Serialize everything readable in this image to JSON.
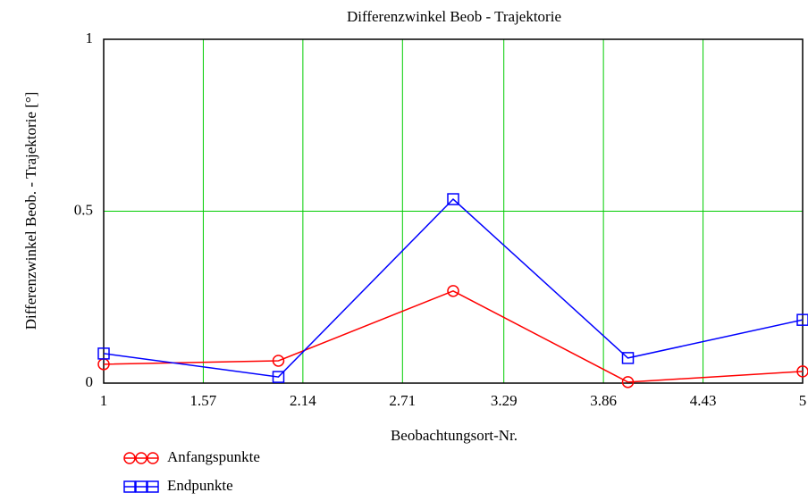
{
  "chart_data": {
    "type": "line",
    "title": "Differenzwinkel Beob - Trajektorie",
    "x_label": "Beobachtungsort-Nr.",
    "y_label": "Differenzwinkel Beob. - Trajektorie [°]",
    "x": [
      1,
      2,
      3,
      4,
      5
    ],
    "series": [
      {
        "name": "Anfangspunkte",
        "color": "#ff0000",
        "marker": "circle",
        "values": [
          0.055,
          0.065,
          0.268,
          0.003,
          0.034
        ]
      },
      {
        "name": "Endpunkte",
        "color": "#0000ff",
        "marker": "square",
        "values": [
          0.086,
          0.018,
          0.535,
          0.073,
          0.184
        ]
      }
    ],
    "xlim": [
      1,
      5
    ],
    "xticks": [
      1,
      1.57,
      2.14,
      2.71,
      3.29,
      3.86,
      4.43,
      5
    ],
    "ylim": [
      0,
      1
    ],
    "yticks": [
      0,
      0.5,
      1
    ],
    "grid": true,
    "grid_color": "#00cc00",
    "legend": "bottom left"
  }
}
